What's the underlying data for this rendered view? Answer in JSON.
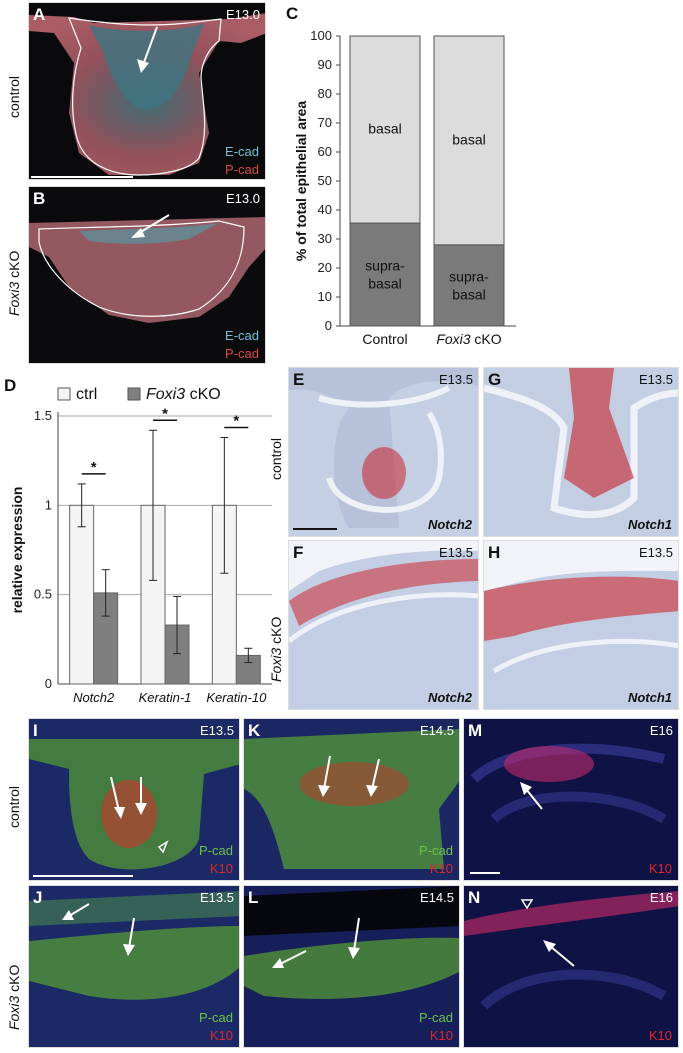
{
  "panels": {
    "A": {
      "letter": "A",
      "stage": "E13.0",
      "stain1": "E-cad",
      "stain2": "P-cad",
      "row": "control"
    },
    "B": {
      "letter": "B",
      "stage": "E13.0",
      "stain1": "E-cad",
      "stain2": "P-cad",
      "row_gene": "Foxi3",
      "row_suffix": " cKO"
    },
    "C": {
      "letter": "C"
    },
    "D": {
      "letter": "D"
    },
    "E": {
      "letter": "E",
      "stage": "E13.5",
      "gene": "Notch2",
      "row": "control"
    },
    "G": {
      "letter": "G",
      "stage": "E13.5",
      "gene": "Notch1"
    },
    "F": {
      "letter": "F",
      "stage": "E13.5",
      "gene": "Notch2",
      "row_gene": "Foxi3",
      "row_suffix": " cKO"
    },
    "H": {
      "letter": "H",
      "stage": "E13.5",
      "gene": "Notch1"
    },
    "I": {
      "letter": "I",
      "stage": "E13.5",
      "stain1": "P-cad",
      "stain2": "K10",
      "row": "control"
    },
    "K": {
      "letter": "K",
      "stage": "E14.5",
      "stain1": "P-cad",
      "stain2": "K10"
    },
    "M": {
      "letter": "M",
      "stage": "E16",
      "stain2": "K10"
    },
    "J": {
      "letter": "J",
      "stage": "E13.5",
      "stain1": "P-cad",
      "stain2": "K10",
      "row_gene": "Foxi3",
      "row_suffix": " cKO"
    },
    "L": {
      "letter": "L",
      "stage": "E14.5",
      "stain1": "P-cad",
      "stain2": "K10"
    },
    "N": {
      "letter": "N",
      "stage": "E16",
      "stain2": "K10"
    }
  },
  "colors": {
    "basal": "#dcdcdc",
    "suprabasal": "#7a7a7a",
    "ctrl": "#f4f4f4",
    "cko": "#7f7f7f",
    "ecad": "#6fc3d8",
    "pcad_red": "#d8474a",
    "pcad_green": "#6cc24a",
    "k10": "#e2262a"
  },
  "chart_data": [
    {
      "type": "bar",
      "stacked": true,
      "panel": "C",
      "categories": [
        "Control",
        "Foxi3 cKO"
      ],
      "category_labels": [
        {
          "text": "Control",
          "italic": ""
        },
        {
          "text": " cKO",
          "italic": "Foxi3"
        }
      ],
      "series": [
        {
          "name": "supra-basal",
          "values": [
            35.5,
            28
          ]
        },
        {
          "name": "basal",
          "values": [
            64.5,
            72
          ]
        }
      ],
      "segment_labels": {
        "basal": "basal",
        "suprabasal_line1": "supra-",
        "suprabasal_line2": "basal"
      },
      "ylabel": "% of total epithelial area",
      "ylim": [
        0,
        100
      ],
      "yticks": [
        0,
        10,
        20,
        30,
        40,
        50,
        60,
        70,
        80,
        90,
        100
      ],
      "grid": false
    },
    {
      "type": "bar",
      "panel": "D",
      "categories": [
        "Notch2",
        "Keratin-1",
        "Keratin-10"
      ],
      "series": [
        {
          "name": "ctrl",
          "values": [
            1.0,
            1.0,
            1.0
          ],
          "error": [
            0.12,
            0.42,
            0.38
          ]
        },
        {
          "name": "Foxi3 cKO",
          "values": [
            0.51,
            0.33,
            0.16
          ],
          "error": [
            0.13,
            0.16,
            0.04
          ]
        }
      ],
      "legend": {
        "ctrl": "ctrl",
        "cko_gene": "Foxi3",
        "cko_suffix": " cKO"
      },
      "legend_placement": "top",
      "ylabel": "relative expression",
      "ylim": [
        0,
        1.5
      ],
      "yticks": [
        "0",
        "0.5",
        "1",
        "1.5"
      ],
      "grid": true,
      "significance": [
        "*",
        "*",
        "*"
      ]
    }
  ]
}
